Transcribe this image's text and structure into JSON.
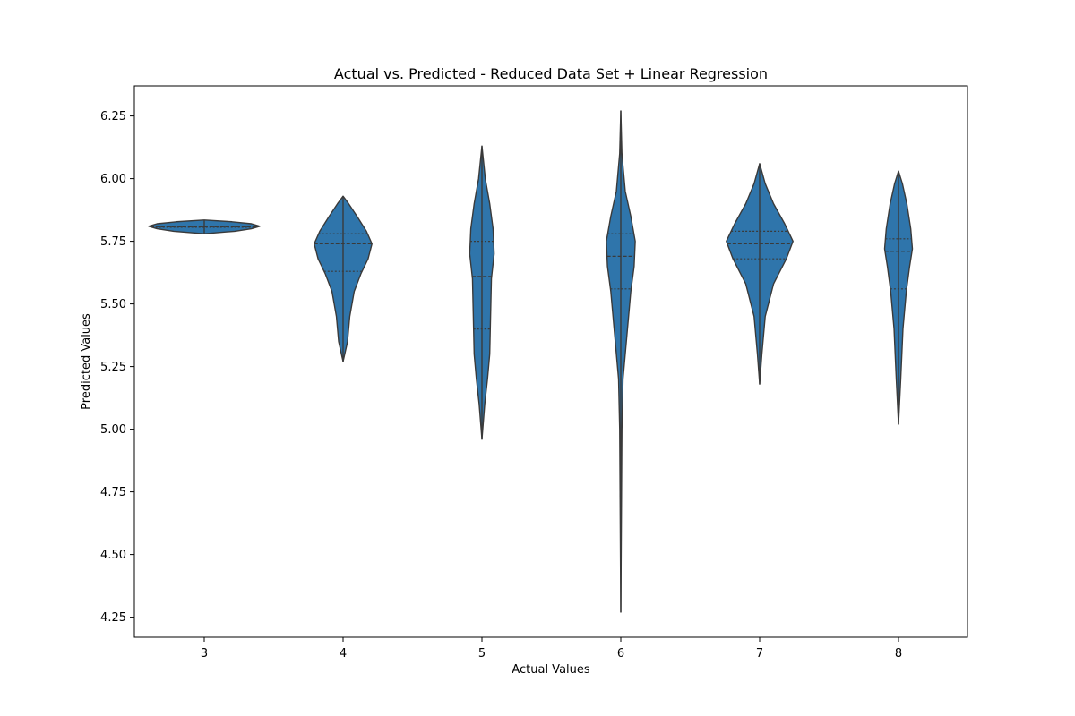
{
  "chart_data": {
    "type": "violin",
    "title": "Actual vs. Predicted - Reduced Data Set + Linear Regression",
    "xlabel": "Actual Values",
    "ylabel": "Predicted Values",
    "ylim": [
      4.17,
      6.37
    ],
    "yticks": [
      4.25,
      4.5,
      4.75,
      5.0,
      5.25,
      5.5,
      5.75,
      6.0,
      6.25
    ],
    "ytick_labels": [
      "4.25",
      "4.50",
      "4.75",
      "5.00",
      "5.25",
      "5.50",
      "5.75",
      "6.00",
      "6.25"
    ],
    "categories": [
      "3",
      "4",
      "5",
      "6",
      "7",
      "8"
    ],
    "color": "#2f75ab",
    "edge_color": "#3a3a3a",
    "grid": false,
    "violins": [
      {
        "category": "3",
        "min": 5.78,
        "max": 5.835,
        "quartiles": [
          5.806,
          5.808,
          5.81
        ],
        "density": [
          [
            5.78,
            0.0
          ],
          [
            5.79,
            0.55
          ],
          [
            5.8,
            0.85
          ],
          [
            5.81,
            1.0
          ],
          [
            5.82,
            0.85
          ],
          [
            5.828,
            0.5
          ],
          [
            5.835,
            0.0
          ]
        ]
      },
      {
        "category": "4",
        "min": 5.27,
        "max": 5.93,
        "quartiles": [
          5.63,
          5.74,
          5.78
        ],
        "density": [
          [
            5.27,
            0.0
          ],
          [
            5.35,
            0.08
          ],
          [
            5.45,
            0.12
          ],
          [
            5.55,
            0.2
          ],
          [
            5.62,
            0.32
          ],
          [
            5.68,
            0.45
          ],
          [
            5.74,
            0.52
          ],
          [
            5.79,
            0.42
          ],
          [
            5.85,
            0.25
          ],
          [
            5.9,
            0.1
          ],
          [
            5.93,
            0.0
          ]
        ]
      },
      {
        "category": "5",
        "min": 4.96,
        "max": 6.13,
        "quartiles": [
          5.4,
          5.61,
          5.75
        ],
        "density": [
          [
            4.96,
            0.0
          ],
          [
            5.1,
            0.05
          ],
          [
            5.2,
            0.1
          ],
          [
            5.3,
            0.14
          ],
          [
            5.4,
            0.15
          ],
          [
            5.5,
            0.16
          ],
          [
            5.6,
            0.17
          ],
          [
            5.7,
            0.22
          ],
          [
            5.8,
            0.2
          ],
          [
            5.9,
            0.14
          ],
          [
            6.0,
            0.06
          ],
          [
            6.13,
            0.0
          ]
        ]
      },
      {
        "category": "6",
        "min": 4.27,
        "max": 6.27,
        "quartiles": [
          5.56,
          5.69,
          5.78
        ],
        "density": [
          [
            4.27,
            0.0
          ],
          [
            5.0,
            0.02
          ],
          [
            5.2,
            0.04
          ],
          [
            5.4,
            0.12
          ],
          [
            5.55,
            0.18
          ],
          [
            5.65,
            0.24
          ],
          [
            5.75,
            0.26
          ],
          [
            5.85,
            0.18
          ],
          [
            5.95,
            0.08
          ],
          [
            6.1,
            0.02
          ],
          [
            6.27,
            0.0
          ]
        ]
      },
      {
        "category": "7",
        "min": 5.18,
        "max": 6.06,
        "quartiles": [
          5.68,
          5.74,
          5.79
        ],
        "density": [
          [
            5.18,
            0.0
          ],
          [
            5.3,
            0.04
          ],
          [
            5.45,
            0.1
          ],
          [
            5.58,
            0.25
          ],
          [
            5.68,
            0.48
          ],
          [
            5.75,
            0.6
          ],
          [
            5.82,
            0.45
          ],
          [
            5.9,
            0.25
          ],
          [
            5.98,
            0.1
          ],
          [
            6.06,
            0.0
          ]
        ]
      },
      {
        "category": "8",
        "min": 5.02,
        "max": 6.03,
        "quartiles": [
          5.56,
          5.71,
          5.76
        ],
        "density": [
          [
            5.02,
            0.0
          ],
          [
            5.2,
            0.04
          ],
          [
            5.4,
            0.08
          ],
          [
            5.55,
            0.14
          ],
          [
            5.65,
            0.2
          ],
          [
            5.72,
            0.25
          ],
          [
            5.8,
            0.22
          ],
          [
            5.9,
            0.15
          ],
          [
            5.98,
            0.07
          ],
          [
            6.03,
            0.0
          ]
        ]
      }
    ]
  }
}
